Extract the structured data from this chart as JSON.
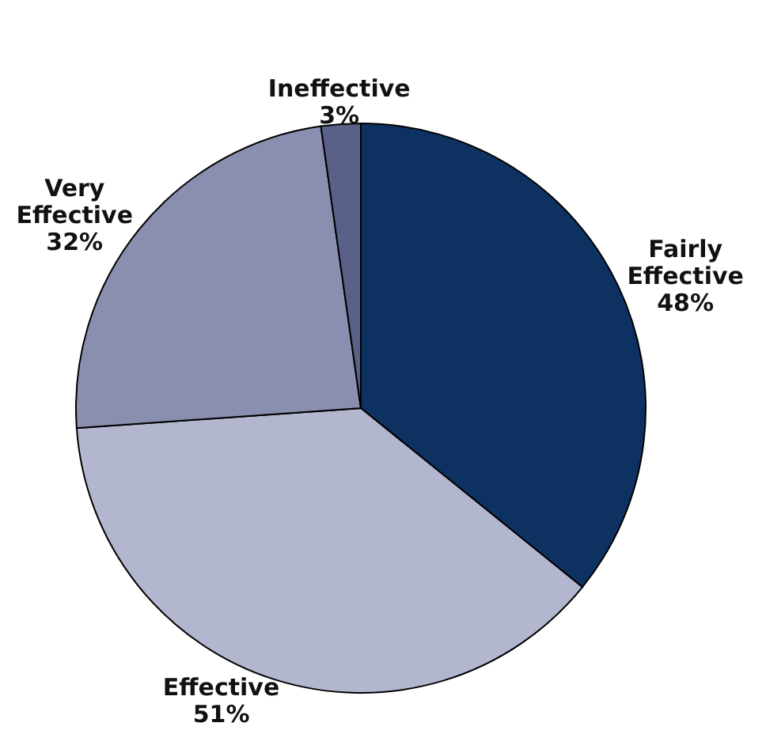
{
  "chart_data": {
    "type": "pie",
    "categories": [
      "Fairly Effective",
      "Effective",
      "Very Effective",
      "Ineffective"
    ],
    "values": [
      48,
      51,
      32,
      3
    ],
    "value_labels": [
      "48%",
      "51%",
      "32%",
      "3%"
    ],
    "colors": [
      "#0d3262",
      "#b3b6cf",
      "#8a8fb0",
      "#5a6189"
    ]
  }
}
